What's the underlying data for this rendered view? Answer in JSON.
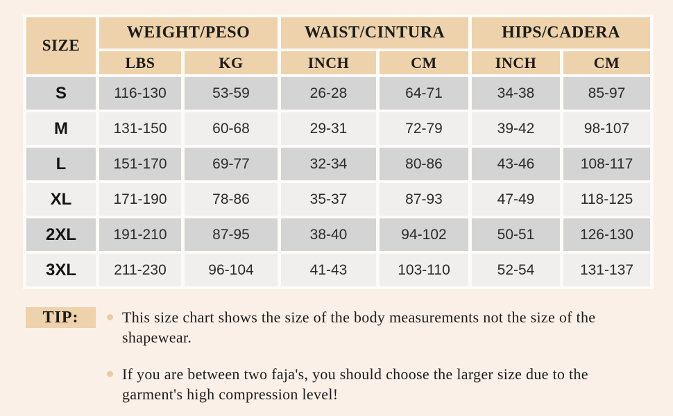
{
  "colors": {
    "page_background": "#fbf0e8",
    "header_tan": "#edd2ab",
    "row_dark_gray": "#d4d4d4",
    "row_light_gray": "#f0efed",
    "bullet_tan": "#e8cda4"
  },
  "chart_data": {
    "type": "table",
    "title": "Shapewear size chart",
    "header": {
      "size_label": "SIZE",
      "groups": [
        {
          "label": "WEIGHT/PESO",
          "sub": [
            "LBS",
            "KG"
          ]
        },
        {
          "label": "WAIST/CINTURA",
          "sub": [
            "INCH",
            "CM"
          ]
        },
        {
          "label": "HIPS/CADERA",
          "sub": [
            "INCH",
            "CM"
          ]
        }
      ]
    },
    "rows": [
      {
        "size": "S",
        "values": [
          "116-130",
          "53-59",
          "26-28",
          "64-71",
          "34-38",
          "85-97"
        ]
      },
      {
        "size": "M",
        "values": [
          "131-150",
          "60-68",
          "29-31",
          "72-79",
          "39-42",
          "98-107"
        ]
      },
      {
        "size": "L",
        "values": [
          "151-170",
          "69-77",
          "32-34",
          "80-86",
          "43-46",
          "108-117"
        ]
      },
      {
        "size": "XL",
        "values": [
          "171-190",
          "78-86",
          "35-37",
          "87-93",
          "47-49",
          "118-125"
        ]
      },
      {
        "size": "2XL",
        "values": [
          "191-210",
          "87-95",
          "38-40",
          "94-102",
          "50-51",
          "126-130"
        ]
      },
      {
        "size": "3XL",
        "values": [
          "211-230",
          "96-104",
          "41-43",
          "103-110",
          "52-54",
          "131-137"
        ]
      }
    ]
  },
  "tips": {
    "label": "TIP:",
    "items": [
      "This size chart shows the size of the body measurements not the size of the\nshapewear.",
      "If you are between two faja's, you should choose the larger size due to the\ngarment's high compression level!"
    ]
  }
}
